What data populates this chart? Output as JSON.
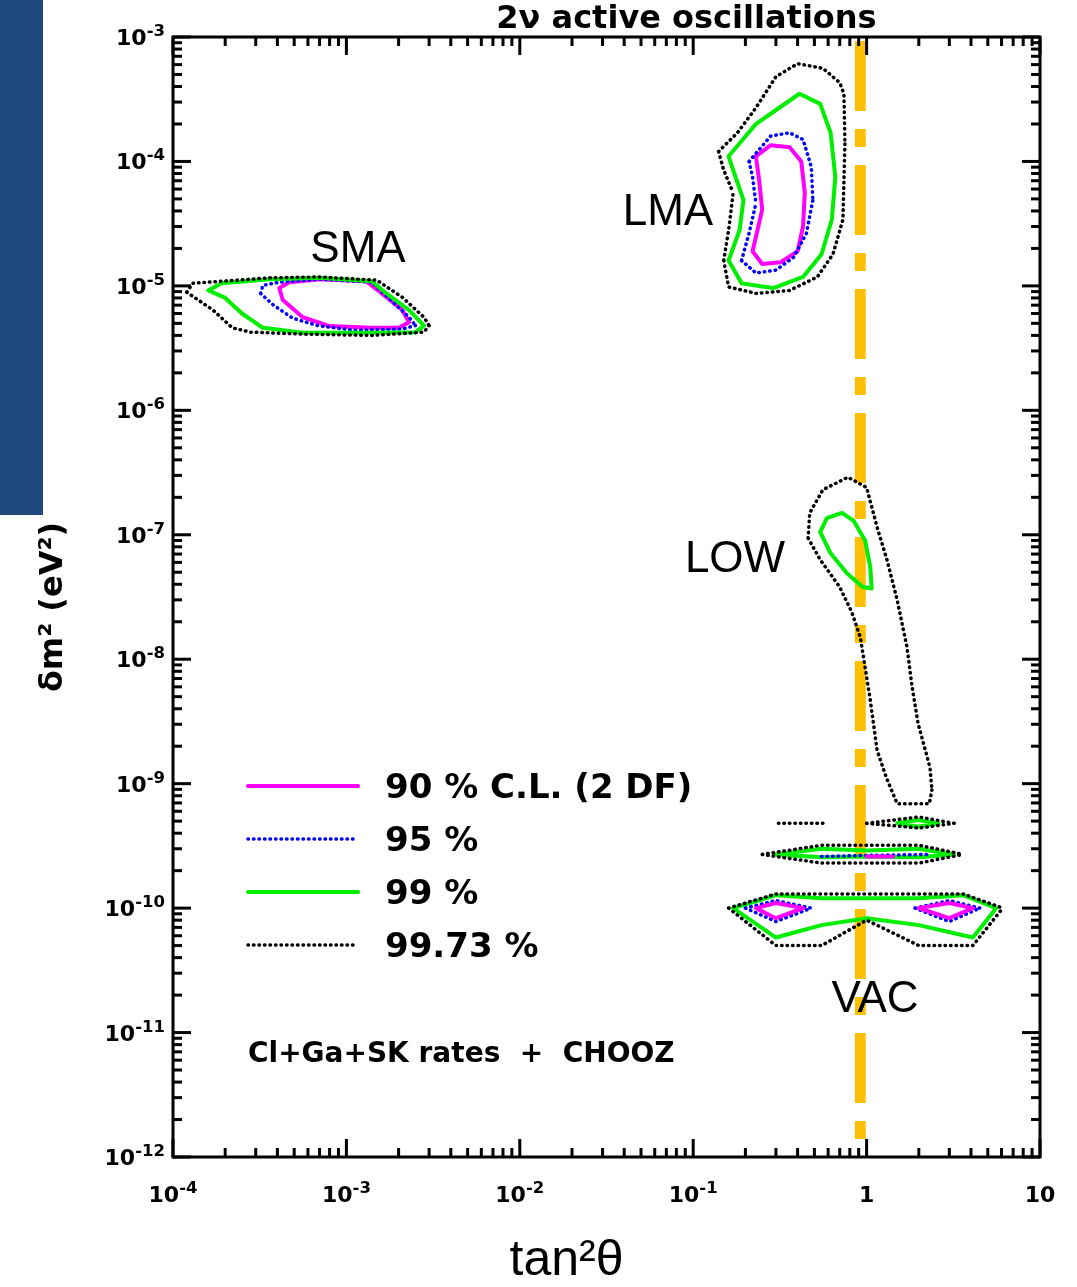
{
  "chart_data": {
    "type": "line",
    "title": "2ν active oscillations",
    "xlabel": "tan²θ",
    "ylabel": "δm² (eV²)",
    "log": "xy",
    "grid": false,
    "legend": "bottom left",
    "xlim": [
      0.0001,
      10
    ],
    "ylim": [
      1e-12,
      0.001
    ],
    "xticks": [
      {
        "value": 0.0001,
        "label": "10$^{-4}$"
      },
      {
        "value": 0.0002,
        "label": null
      },
      {
        "value": 0.0003,
        "label": null
      },
      {
        "value": 0.0004,
        "label": null
      },
      {
        "value": 0.0005,
        "label": null
      },
      {
        "value": 0.0006,
        "label": null
      },
      {
        "value": 0.0007,
        "label": null
      },
      {
        "value": 0.0008,
        "label": null
      },
      {
        "value": 0.0009,
        "label": null
      },
      {
        "value": 0.001,
        "label": "10$^{-3}$"
      },
      {
        "value": 0.002,
        "label": null
      },
      {
        "value": 0.003,
        "label": null
      },
      {
        "value": 0.004,
        "label": null
      },
      {
        "value": 0.005,
        "label": null
      },
      {
        "value": 0.006,
        "label": null
      },
      {
        "value": 0.007,
        "label": null
      },
      {
        "value": 0.008,
        "label": null
      },
      {
        "value": 0.009,
        "label": null
      },
      {
        "value": 0.01,
        "label": "10$^{-2}$"
      },
      {
        "value": 0.02,
        "label": null
      },
      {
        "value": 0.03,
        "label": null
      },
      {
        "value": 0.04,
        "label": null
      },
      {
        "value": 0.05,
        "label": null
      },
      {
        "value": 0.06,
        "label": null
      },
      {
        "value": 0.07,
        "label": null
      },
      {
        "value": 0.08,
        "label": null
      },
      {
        "value": 0.09,
        "label": null
      },
      {
        "value": 0.1,
        "label": "10$^{-1}$"
      },
      {
        "value": 0.2,
        "label": null
      },
      {
        "value": 0.3,
        "label": null
      },
      {
        "value": 0.4,
        "label": null
      },
      {
        "value": 0.5,
        "label": null
      },
      {
        "value": 0.6,
        "label": null
      },
      {
        "value": 0.7,
        "label": null
      },
      {
        "value": 0.8,
        "label": null
      },
      {
        "value": 0.9,
        "label": null
      },
      1,
      {
        "value": 2,
        "label": null
      },
      {
        "value": 3,
        "label": null
      },
      {
        "value": 4,
        "label": null
      },
      {
        "value": 5,
        "label": null
      },
      {
        "value": 6,
        "label": null
      },
      {
        "value": 7,
        "label": null
      },
      {
        "value": 8,
        "label": null
      },
      {
        "value": 9,
        "label": null
      },
      10
    ],
    "yticks": [
      {
        "value": 1e-12,
        "label": "10$^{-12}$"
      },
      {
        "value": 2e-12,
        "label": null
      },
      {
        "value": 3e-12,
        "label": null
      },
      {
        "value": 4e-12,
        "label": null
      },
      {
        "value": 5e-12,
        "label": null
      },
      {
        "value": 6e-12,
        "label": null
      },
      {
        "value": 7e-12,
        "label": null
      },
      {
        "value": 8e-12,
        "label": null
      },
      {
        "value": 9e-12,
        "label": null
      },
      {
        "value": 1e-11,
        "label": "10$^{-11}$"
      },
      {
        "value": 2e-11,
        "label": null
      },
      {
        "value": 3e-11,
        "label": null
      },
      {
        "value": 4e-11,
        "label": null
      },
      {
        "value": 5e-11,
        "label": null
      },
      {
        "value": 6e-11,
        "label": null
      },
      {
        "value": 7e-11,
        "label": null
      },
      {
        "value": 8e-11,
        "label": null
      },
      {
        "value": 9e-11,
        "label": null
      },
      {
        "value": 1e-10,
        "label": "10$^{-10}$"
      },
      {
        "value": 2e-10,
        "label": null
      },
      {
        "value": 3e-10,
        "label": null
      },
      {
        "value": 4e-10,
        "label": null
      },
      {
        "value": 5e-10,
        "label": null
      },
      {
        "value": 6e-10,
        "label": null
      },
      {
        "value": 7e-10,
        "label": null
      },
      {
        "value": 8e-10,
        "label": null
      },
      {
        "value": 9e-10,
        "label": null
      },
      {
        "value": 1e-09,
        "label": "10$^{-9}$"
      },
      {
        "value": 2e-09,
        "label": null
      },
      {
        "value": 3e-09,
        "label": null
      },
      {
        "value": 4e-09,
        "label": null
      },
      {
        "value": 5e-09,
        "label": null
      },
      {
        "value": 6e-09,
        "label": null
      },
      {
        "value": 7e-09,
        "label": null
      },
      {
        "value": 8e-09,
        "label": null
      },
      {
        "value": 9e-09,
        "label": null
      },
      {
        "value": 1e-08,
        "label": "10$^{-8}$"
      },
      {
        "value": 2e-08,
        "label": null
      },
      {
        "value": 3e-08,
        "label": null
      },
      {
        "value": 4e-08,
        "label": null
      },
      {
        "value": 5e-08,
        "label": null
      },
      {
        "value": 6e-08,
        "label": null
      },
      {
        "value": 7e-08,
        "label": null
      },
      {
        "value": 8e-08,
        "label": null
      },
      {
        "value": 9e-08,
        "label": null
      },
      {
        "value": 1e-07,
        "label": "10$^{-7}$"
      },
      {
        "value": 2e-07,
        "label": null
      },
      {
        "value": 3e-07,
        "label": null
      },
      {
        "value": 4e-07,
        "label": null
      },
      {
        "value": 5e-07,
        "label": null
      },
      {
        "value": 6e-07,
        "label": null
      },
      {
        "value": 7e-07,
        "label": null
      },
      {
        "value": 8e-07,
        "label": null
      },
      {
        "value": 9e-07,
        "label": null
      },
      {
        "value": 1e-06,
        "label": "10$^{-6}$"
      },
      {
        "value": 2e-06,
        "label": null
      },
      {
        "value": 3e-06,
        "label": null
      },
      {
        "value": 4e-06,
        "label": null
      },
      {
        "value": 5e-06,
        "label": null
      },
      {
        "value": 6e-06,
        "label": null
      },
      {
        "value": 7e-06,
        "label": null
      },
      {
        "value": 8e-06,
        "label": null
      },
      {
        "value": 9e-06,
        "label": null
      },
      {
        "value": 1e-05,
        "label": "10$^{-5}$"
      },
      {
        "value": 2e-05,
        "label": null
      },
      {
        "value": 3e-05,
        "label": null
      },
      {
        "value": 4e-05,
        "label": null
      },
      {
        "value": 5e-05,
        "label": null
      },
      {
        "value": 6e-05,
        "label": null
      },
      {
        "value": 7e-05,
        "label": null
      },
      {
        "value": 8e-05,
        "label": null
      },
      {
        "value": 9e-05,
        "label": null
      },
      {
        "value": 0.0001,
        "label": "10$^{-4}$"
      },
      {
        "value": 0.0002,
        "label": null
      },
      {
        "value": 0.0003,
        "label": null
      },
      {
        "value": 0.0004,
        "label": null
      },
      {
        "value": 0.0005,
        "label": null
      },
      {
        "value": 0.0006,
        "label": null
      },
      {
        "value": 0.0007,
        "label": null
      },
      {
        "value": 0.0008,
        "label": null
      },
      {
        "value": 0.0009,
        "label": null
      },
      {
        "value": 0.001,
        "label": "10$^{-3}$"
      }
    ],
    "ref_lines": [
      {
        "axis": "x",
        "value": 0.92,
        "color": "#ffc000",
        "line_style": "dashed"
      }
    ],
    "annotations": [
      "SMA",
      "LMA",
      "LOW",
      "VAC",
      "Cl+Ga+SK rates  +  CHOOZ"
    ],
    "series": [
      {
        "name": "90 % C.L. (2 DF)",
        "color": "#ff00ff",
        "line_style": "solid",
        "x": [
          0.23,
          0.28,
          0.36,
          0.42,
          0.44,
          null,
          0.22,
          0.25,
          0.32,
          0.4,
          0.43,
          0.44,
          null,
          0.22,
          0.25,
          null,
          0.23,
          0.24,
          0.25
        ],
        "values": [
          0.00011,
          0.000135,
          0.00013,
          0.0001,
          5.6e-05,
          null,
          1.9e-05,
          1.5e-05,
          1.55e-05,
          1.9e-05,
          3e-05,
          5.6e-05,
          null,
          1.9e-05,
          4.1e-05,
          null,
          0.00011,
          7.1e-05,
          4.1e-05
        ]
      },
      {
        "name": "95 %",
        "color": "#0000ff",
        "line_style": "dotted",
        "x": [
          0.21,
          0.28,
          0.36,
          0.43,
          0.48,
          0.49,
          null,
          0.19,
          0.23,
          0.3,
          0.38,
          0.45,
          0.49,
          null,
          0.19,
          0.21,
          0.23,
          null,
          0.21,
          0.22,
          0.23
        ],
        "values": [
          0.0001,
          0.00016,
          0.00017,
          0.00015,
          9e-05,
          4.9e-05,
          null,
          1.6e-05,
          1.27e-05,
          1.34e-05,
          1.7e-05,
          2.65e-05,
          4.9e-05,
          null,
          1.6e-05,
          2.65e-05,
          4.6e-05,
          null,
          0.0001,
          7.5e-05,
          4.6e-05
        ]
      },
      {
        "name": "99 %",
        "color": "#00ee00",
        "line_style": "solid",
        "x": [
          0.16,
          0.23,
          0.41,
          0.54,
          0.62,
          0.66,
          null,
          0.16,
          0.19,
          0.29,
          0.43,
          0.55,
          0.63,
          0.66,
          null,
          0.16,
          0.185,
          0.195,
          null,
          0.16,
          0.17,
          0.195
        ],
        "values": [
          0.00011,
          0.0002,
          0.00035,
          0.00029,
          0.00017,
          7.5e-05,
          null,
          1.6e-05,
          1.05e-05,
          9.6e-06,
          1.18e-05,
          1.8e-05,
          3.4e-05,
          7.5e-05,
          null,
          1.6e-05,
          2.8e-05,
          4.9e-05,
          null,
          0.00011,
          8.5e-05,
          4.9e-05
        ]
      },
      {
        "name": "99.73 %",
        "color": "#000000",
        "line_style": "dotted",
        "x": [
          0.14,
          0.18,
          0.23,
          0.3,
          0.4,
          0.56,
          0.7,
          0.74,
          0.75,
          null,
          0.15,
          0.16,
          0.23,
          0.36,
          0.52,
          0.64,
          0.73,
          0.75,
          null,
          0.15,
          0.16,
          0.17,
          null,
          0.14,
          0.15,
          0.17
        ],
        "values": [
          0.00012,
          0.00017,
          0.00027,
          0.00048,
          0.00061,
          0.00056,
          0.00043,
          0.00035,
          0.00014,
          null,
          1.6e-05,
          9.8e-06,
          8.7e-06,
          9.2e-06,
          1.18e-05,
          1.8e-05,
          3.4e-05,
          0.00014,
          null,
          1.6e-05,
          2.8e-05,
          5.6e-05,
          null,
          0.00012,
          8.5e-05,
          5.6e-05
        ]
      },
      {
        "color": "#ff00ff",
        "line_style": "solid",
        "x": [
          0.00041,
          0.00047,
          0.0007,
          0.0013,
          0.0016,
          0.0021,
          0.0023,
          null,
          0.00041,
          0.00043,
          0.00056,
          0.0008,
          0.0014,
          0.002,
          0.0023
        ],
        "values": [
          9.6e-06,
          1.07e-05,
          1.13e-05,
          1.09e-05,
          8.7e-06,
          6.4e-06,
          5.1e-06,
          null,
          9.6e-06,
          7.7e-06,
          5.6e-06,
          4.75e-06,
          4.6e-06,
          4.6e-06,
          5.1e-06
        ]
      },
      {
        "color": "#0000ff",
        "line_style": "dotted",
        "x": [
          0.00032,
          0.00033,
          0.00041,
          0.0007,
          0.0014,
          0.0018,
          0.0023,
          0.0025,
          null,
          0.00032,
          0.00038,
          0.00049,
          0.00068,
          0.0011,
          0.0021,
          0.0025
        ],
        "values": [
          8.7e-06,
          1.01e-05,
          1.07e-05,
          1.13e-05,
          1.07e-05,
          7.7e-06,
          5.6e-06,
          4.8e-06,
          null,
          8.7e-06,
          7e-06,
          5.5e-06,
          4.8e-06,
          4.4e-06,
          4.5e-06,
          4.8e-06
        ]
      },
      {
        "color": "#00ee00",
        "line_style": "solid",
        "x": [
          0.00016,
          0.00019,
          0.00036,
          0.0007,
          0.0014,
          0.0017,
          0.0023,
          0.0028,
          null,
          0.00016,
          0.0002,
          0.00025,
          0.00033,
          0.00056,
          0.0014,
          0.0025,
          0.0028
        ],
        "values": [
          9.2e-06,
          1.05e-05,
          1.13e-05,
          1.16e-05,
          1.09e-05,
          8.7e-06,
          6.4e-06,
          4.8e-06,
          null,
          9.2e-06,
          8e-06,
          6e-06,
          4.6e-06,
          4.2e-06,
          4.2e-06,
          4.25e-06,
          4.8e-06
        ]
      },
      {
        "color": "#000000",
        "line_style": "dotted",
        "x": [
          0.00012,
          0.00013,
          0.00019,
          0.00036,
          0.0007,
          0.0015,
          0.0021,
          0.0028,
          0.003,
          null,
          0.00012,
          0.00017,
          0.00022,
          0.00028,
          0.00056,
          0.0014,
          0.0028,
          0.003
        ],
        "values": [
          8.9e-06,
          1.05e-05,
          1.09e-05,
          1.16e-05,
          1.18e-05,
          1.11e-05,
          8.1e-06,
          5.6e-06,
          4.8e-06,
          null,
          8.9e-06,
          6.4e-06,
          4.6e-06,
          4.25e-06,
          4.1e-06,
          4e-06,
          4.25e-06,
          4.8e-06
        ]
      },
      {
        "color": "#00ee00",
        "line_style": "solid",
        "x": [
          0.54,
          0.59,
          0.72,
          0.84,
          0.98,
          1.05,
          1.07,
          null,
          0.54,
          0.62,
          0.77,
          0.95,
          1.07
        ],
        "values": [
          1.05e-07,
          1.36e-07,
          1.5e-07,
          1.3e-07,
          9e-08,
          5.5e-08,
          3.7e-08,
          null,
          1.05e-07,
          7.1e-08,
          4.9e-08,
          3.8e-08,
          3.7e-08
        ]
      },
      {
        "color": "#000000",
        "line_style": "dotted",
        "x": [
          0.46,
          0.54,
          0.7,
          0.82,
          0.92,
          1.05,
          1.15,
          1.3,
          1.5,
          2.3,
          2.38,
          null,
          0.46,
          0.47,
          0.56,
          0.78,
          1.0,
          1.15,
          1.31,
          1.5,
          1.71,
          1.83,
          1.98,
          2.32,
          2.38
        ],
        "values": [
          9.4e-08,
          6.3e-08,
          3.8e-08,
          2.4e-08,
          1.5e-08,
          4.7e-09,
          1.85e-09,
          1.12e-09,
          6.9e-10,
          6.9e-10,
          8.9e-10,
          null,
          9.4e-08,
          1.5e-07,
          2.3e-07,
          2.9e-07,
          2.4e-07,
          1.15e-07,
          6.3e-08,
          3e-08,
          1.25e-08,
          6e-09,
          3.05e-09,
          1.35e-09,
          8.9e-10
        ]
      },
      {
        "color": "#00ee00",
        "line_style": "solid",
        "x": [
          1.5,
          1.98,
          2.6,
          null,
          1.5,
          1.98,
          2.6
        ],
        "values": [
          4.8e-10,
          5.1e-10,
          4.8e-10,
          null,
          4.8e-10,
          4.5e-10,
          4.8e-10
        ]
      },
      {
        "color": "#000000",
        "line_style": "dotted",
        "x": [
          1.0,
          2.0,
          3.2,
          null,
          1.0,
          2.0,
          3.2
        ],
        "values": [
          4.8e-10,
          5.4e-10,
          4.8e-10,
          null,
          4.8e-10,
          4.4e-10,
          4.8e-10
        ]
      },
      {
        "color": "#000000",
        "line_style": "dotted",
        "x": [
          0.31,
          0.56
        ],
        "values": [
          4.8e-10,
          4.8e-10
        ]
      },
      {
        "color": "#00ee00",
        "line_style": "solid",
        "x": [
          0.3,
          0.55,
          1.0,
          2.0,
          3.2,
          null,
          0.3,
          0.55,
          1.0,
          2.0,
          3.2
        ],
        "values": [
          2.7e-10,
          3e-10,
          2.9e-10,
          3e-10,
          2.7e-10,
          null,
          2.7e-10,
          2.56e-10,
          2.6e-10,
          2.56e-10,
          2.7e-10
        ]
      },
      {
        "color": "#0000ff",
        "line_style": "dotted",
        "x": [
          0.55,
          1.0,
          2.26
        ],
        "values": [
          2.6e-10,
          2.65e-10,
          2.7e-10
        ]
      },
      {
        "color": "#ff00ff",
        "line_style": "solid",
        "x": [
          1.0,
          1.42
        ],
        "values": [
          2.6e-10,
          2.6e-10
        ]
      },
      {
        "color": "#000000",
        "line_style": "dotted",
        "x": [
          0.25,
          0.55,
          1.0,
          2.0,
          3.6,
          null,
          0.25,
          0.55,
          1.0,
          2.0,
          3.6
        ],
        "values": [
          2.7e-10,
          3.2e-10,
          3.2e-10,
          3.2e-10,
          2.7e-10,
          null,
          2.7e-10,
          2.3e-10,
          2.3e-10,
          2.3e-10,
          2.7e-10
        ]
      },
      {
        "color": "#00ee00",
        "line_style": "solid",
        "x": [
          0.17,
          0.3,
          0.55,
          1.0,
          2.0,
          3.6,
          5.6,
          null,
          0.17,
          0.3,
          0.55,
          1.0,
          2.0,
          4.1,
          5.6
        ],
        "values": [
          1e-10,
          1.27e-10,
          1.2e-10,
          1.2e-10,
          1.2e-10,
          1.27e-10,
          1e-10,
          null,
          1e-10,
          5.8e-11,
          7.3e-11,
          8.3e-11,
          7.3e-11,
          5.8e-11,
          1e-10
        ]
      },
      {
        "color": "#0000ff",
        "line_style": "dotted",
        "x": [
          0.2,
          0.3,
          0.48,
          null,
          0.2,
          0.3,
          0.48
        ],
        "values": [
          1e-10,
          1.15e-10,
          1e-10,
          null,
          1e-10,
          7.8e-11,
          1e-10
        ]
      },
      {
        "color": "#0000ff",
        "line_style": "dotted",
        "x": [
          1.9,
          3.0,
          4.5,
          null,
          1.9,
          3.0,
          4.5
        ],
        "values": [
          1e-10,
          1.15e-10,
          1e-10,
          null,
          1e-10,
          7.8e-11,
          1e-10
        ]
      },
      {
        "color": "#ff00ff",
        "line_style": "solid",
        "x": [
          0.23,
          0.3,
          0.43,
          null,
          0.23,
          0.3,
          0.43
        ],
        "values": [
          1e-10,
          1.1e-10,
          1e-10,
          null,
          1e-10,
          8.3e-11,
          1e-10
        ]
      },
      {
        "color": "#ff00ff",
        "line_style": "solid",
        "x": [
          2.0,
          3.0,
          4.1,
          null,
          2.0,
          3.0,
          4.1
        ],
        "values": [
          1e-10,
          1.1e-10,
          1e-10,
          null,
          1e-10,
          8.3e-11,
          1e-10
        ]
      },
      {
        "color": "#000000",
        "line_style": "dotted",
        "x": [
          0.16,
          0.3,
          0.55,
          1.0,
          2.0,
          3.6,
          6.1,
          null,
          0.16,
          0.3,
          0.55,
          1.0,
          2.0,
          4.1,
          6.1
        ],
        "values": [
          1e-10,
          1.3e-10,
          1.3e-10,
          1.3e-10,
          1.3e-10,
          1.3e-10,
          1e-10,
          null,
          1e-10,
          5e-11,
          5e-11,
          8e-11,
          5e-11,
          5e-11,
          1e-10
        ]
      }
    ]
  }
}
